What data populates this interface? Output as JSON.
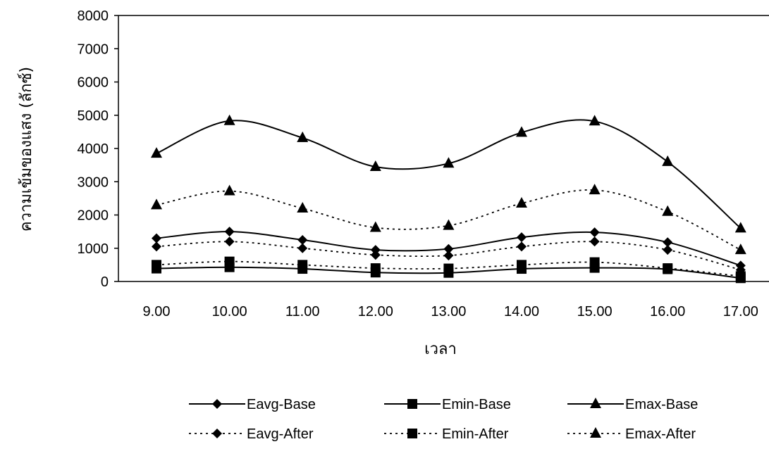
{
  "chart_data": {
    "type": "line",
    "title": "",
    "xlabel": "เวลา",
    "ylabel": "ความเข้มของแสง (ลักซ์)",
    "categories": [
      "9.00",
      "10.00",
      "11.00",
      "12.00",
      "13.00",
      "14.00",
      "15.00",
      "16.00",
      "17.00"
    ],
    "ylim": [
      0,
      8000
    ],
    "yticks": [
      0,
      1000,
      2000,
      3000,
      4000,
      5000,
      6000,
      7000,
      8000
    ],
    "grid": false,
    "legend_position": "bottom",
    "series": [
      {
        "name": "Eavg-Base",
        "marker": "diamond",
        "dash": "solid",
        "values": [
          1300,
          1500,
          1250,
          950,
          980,
          1330,
          1480,
          1180,
          480
        ]
      },
      {
        "name": "Emin-Base",
        "marker": "square",
        "dash": "solid",
        "values": [
          390,
          430,
          380,
          270,
          260,
          380,
          410,
          370,
          100
        ]
      },
      {
        "name": "Emax-Base",
        "marker": "triangle",
        "dash": "solid",
        "values": [
          3850,
          4830,
          4320,
          3450,
          3550,
          4480,
          4820,
          3600,
          1600
        ]
      },
      {
        "name": "Eavg-After",
        "marker": "diamond",
        "dash": "dotted",
        "values": [
          1050,
          1200,
          1000,
          800,
          780,
          1050,
          1200,
          950,
          350
        ]
      },
      {
        "name": "Emin-After",
        "marker": "square",
        "dash": "dotted",
        "values": [
          500,
          600,
          500,
          400,
          390,
          500,
          580,
          400,
          160
        ]
      },
      {
        "name": "Emax-After",
        "marker": "triangle",
        "dash": "dotted",
        "values": [
          2300,
          2720,
          2200,
          1620,
          1680,
          2350,
          2750,
          2100,
          950
        ]
      }
    ]
  }
}
